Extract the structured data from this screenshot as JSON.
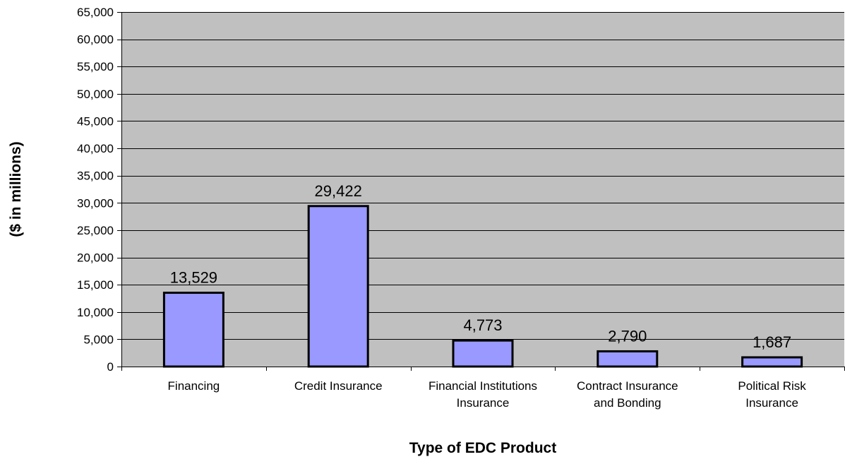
{
  "chart_data": {
    "type": "bar",
    "title": "",
    "xlabel": "Type of EDC Product",
    "ylabel": "($ in millions)",
    "categories": [
      [
        "Financing"
      ],
      [
        "Credit Insurance"
      ],
      [
        "Financial Institutions",
        "Insurance"
      ],
      [
        "Contract Insurance",
        "and Bonding"
      ],
      [
        "Political Risk",
        "Insurance"
      ]
    ],
    "values": [
      13529,
      29422,
      4773,
      2790,
      1687
    ],
    "value_labels": [
      "13,529",
      "29,422",
      "4,773",
      "2,790",
      "1,687"
    ],
    "ylim": [
      0,
      65000
    ],
    "yticks": [
      0,
      5000,
      10000,
      15000,
      20000,
      25000,
      30000,
      35000,
      40000,
      45000,
      50000,
      55000,
      60000,
      65000
    ],
    "ytick_labels": [
      "0",
      "5,000",
      "10,000",
      "15,000",
      "20,000",
      "25,000",
      "30,000",
      "35,000",
      "40,000",
      "45,000",
      "50,000",
      "55,000",
      "60,000",
      "65,000"
    ],
    "grid": true,
    "legend": "none",
    "colors": {
      "plot_background": "#c0c0c0",
      "bar_fill": "#9999ff",
      "bar_stroke": "#000000",
      "gridline": "#000000"
    }
  }
}
